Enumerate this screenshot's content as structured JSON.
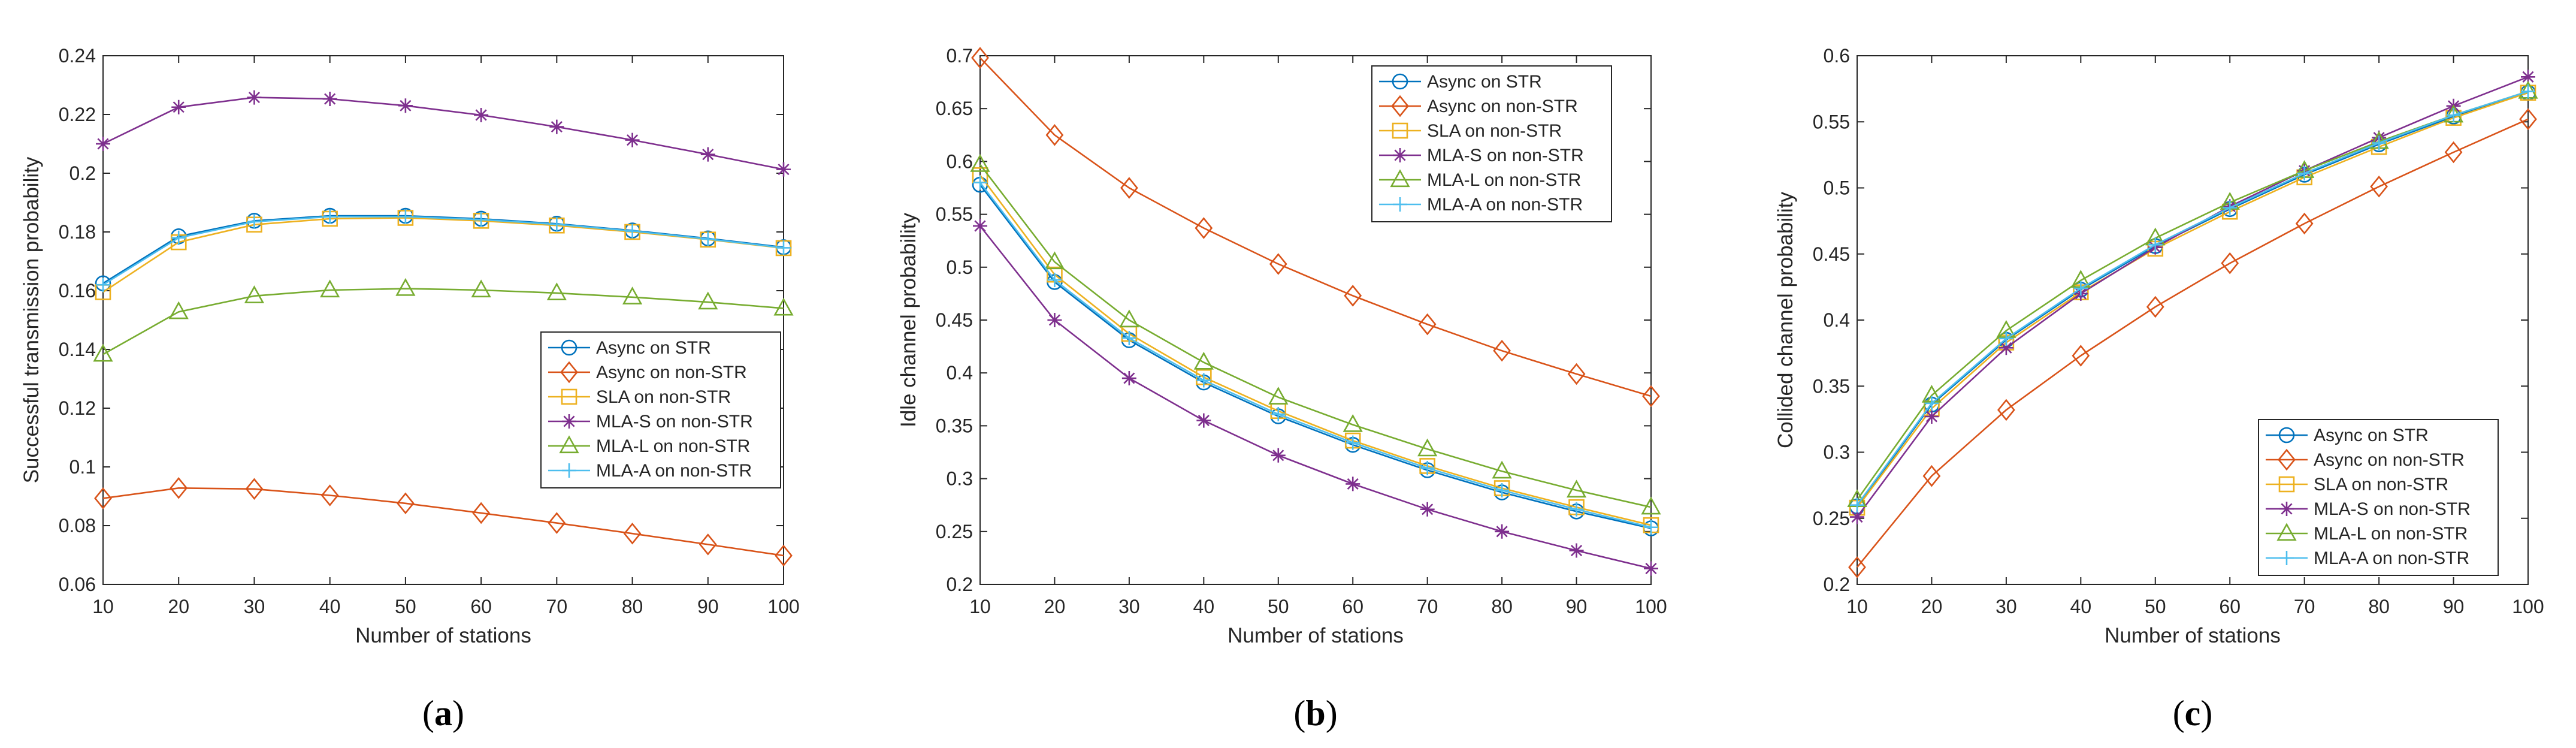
{
  "chart_data": [
    {
      "type": "line",
      "panel_label": "(a)",
      "title": "",
      "xlabel": "Number of stations",
      "ylabel": "Successful transmission probability",
      "xlim": [
        10,
        100
      ],
      "ylim": [
        0.06,
        0.24
      ],
      "xticks": [
        10,
        20,
        30,
        40,
        50,
        60,
        70,
        80,
        90,
        100
      ],
      "yticks": [
        0.06,
        0.08,
        0.1,
        0.12,
        0.14,
        0.16,
        0.18,
        0.2,
        0.22,
        0.24
      ],
      "ytick_labels": [
        "0.06",
        "0.08",
        "0.1",
        "0.12",
        "0.14",
        "0.16",
        "0.18",
        "0.2",
        "0.22",
        "0.24"
      ],
      "legend_position": "center-right",
      "x": [
        10,
        20,
        30,
        40,
        50,
        60,
        70,
        80,
        90,
        100
      ],
      "series": [
        {
          "name": "Async on STR",
          "color": "#0072BD",
          "marker": "circle",
          "values": [
            0.1625,
            0.1785,
            0.1838,
            0.1855,
            0.1855,
            0.1845,
            0.1828,
            0.1805,
            0.1778,
            0.1748
          ]
        },
        {
          "name": "Async on non-STR",
          "color": "#D95319",
          "marker": "diamond",
          "values": [
            0.0893,
            0.0928,
            0.0925,
            0.0903,
            0.0876,
            0.0843,
            0.0809,
            0.0773,
            0.0736,
            0.0698
          ]
        },
        {
          "name": "SLA on non-STR",
          "color": "#EDB120",
          "marker": "square",
          "values": [
            0.1595,
            0.1765,
            0.1825,
            0.1845,
            0.1848,
            0.1838,
            0.1822,
            0.18,
            0.1774,
            0.1745
          ]
        },
        {
          "name": "MLA-S on non-STR",
          "color": "#7E2F8E",
          "marker": "star",
          "values": [
            0.21,
            0.2225,
            0.2258,
            0.2253,
            0.223,
            0.2198,
            0.2158,
            0.2113,
            0.2064,
            0.2013
          ]
        },
        {
          "name": "MLA-L on non-STR",
          "color": "#77AC30",
          "marker": "triangle",
          "values": [
            0.1383,
            0.1528,
            0.1582,
            0.1602,
            0.1607,
            0.1602,
            0.1592,
            0.1578,
            0.1561,
            0.154
          ]
        },
        {
          "name": "MLA-A on non-STR",
          "color": "#4DBEEE",
          "marker": "plus",
          "values": [
            0.162,
            0.178,
            0.1835,
            0.1852,
            0.1852,
            0.1842,
            0.1826,
            0.1803,
            0.1776,
            0.1746
          ]
        }
      ]
    },
    {
      "type": "line",
      "panel_label": "(b)",
      "title": "",
      "xlabel": "Number of stations",
      "ylabel": "Idle channel probability",
      "xlim": [
        10,
        100
      ],
      "ylim": [
        0.2,
        0.7
      ],
      "xticks": [
        10,
        20,
        30,
        40,
        50,
        60,
        70,
        80,
        90,
        100
      ],
      "yticks": [
        0.2,
        0.25,
        0.3,
        0.35,
        0.4,
        0.45,
        0.5,
        0.55,
        0.6,
        0.65,
        0.7
      ],
      "ytick_labels": [
        "0.2",
        "0.25",
        "0.3",
        "0.35",
        "0.4",
        "0.45",
        "0.5",
        "0.55",
        "0.6",
        "0.65",
        "0.7"
      ],
      "legend_position": "top-right",
      "x": [
        10,
        20,
        30,
        40,
        50,
        60,
        70,
        80,
        90,
        100
      ],
      "series": [
        {
          "name": "Async on STR",
          "color": "#0072BD",
          "marker": "circle",
          "values": [
            0.578,
            0.486,
            0.431,
            0.391,
            0.359,
            0.332,
            0.308,
            0.287,
            0.269,
            0.253
          ]
        },
        {
          "name": "Async on non-STR",
          "color": "#D95319",
          "marker": "diamond",
          "values": [
            0.698,
            0.625,
            0.575,
            0.537,
            0.503,
            0.473,
            0.446,
            0.421,
            0.399,
            0.378
          ]
        },
        {
          "name": "SLA on non-STR",
          "color": "#EDB120",
          "marker": "square",
          "values": [
            0.587,
            0.493,
            0.437,
            0.396,
            0.364,
            0.336,
            0.312,
            0.291,
            0.273,
            0.256
          ]
        },
        {
          "name": "MLA-S on non-STR",
          "color": "#7E2F8E",
          "marker": "star",
          "values": [
            0.539,
            0.45,
            0.395,
            0.355,
            0.322,
            0.295,
            0.271,
            0.25,
            0.232,
            0.215
          ]
        },
        {
          "name": "MLA-L on non-STR",
          "color": "#77AC30",
          "marker": "triangle",
          "values": [
            0.597,
            0.505,
            0.45,
            0.41,
            0.377,
            0.351,
            0.328,
            0.307,
            0.289,
            0.273
          ]
        },
        {
          "name": "MLA-A on non-STR",
          "color": "#4DBEEE",
          "marker": "plus",
          "values": [
            0.58,
            0.488,
            0.433,
            0.393,
            0.361,
            0.334,
            0.31,
            0.289,
            0.271,
            0.254
          ]
        }
      ]
    },
    {
      "type": "line",
      "panel_label": "(c)",
      "title": "",
      "xlabel": "Number of stations",
      "ylabel": "Collided channel probability",
      "xlim": [
        10,
        100
      ],
      "ylim": [
        0.2,
        0.6
      ],
      "xticks": [
        10,
        20,
        30,
        40,
        50,
        60,
        70,
        80,
        90,
        100
      ],
      "yticks": [
        0.2,
        0.25,
        0.3,
        0.35,
        0.4,
        0.45,
        0.5,
        0.55,
        0.6
      ],
      "ytick_labels": [
        "0.2",
        "0.25",
        "0.3",
        "0.35",
        "0.4",
        "0.45",
        "0.5",
        "0.55",
        "0.6"
      ],
      "legend_position": "bottom-right",
      "x": [
        10,
        20,
        30,
        40,
        50,
        60,
        70,
        80,
        90,
        100
      ],
      "series": [
        {
          "name": "Async on STR",
          "color": "#0072BD",
          "marker": "circle",
          "values": [
            0.259,
            0.336,
            0.385,
            0.423,
            0.456,
            0.484,
            0.51,
            0.533,
            0.554,
            0.572
          ]
        },
        {
          "name": "Async on non-STR",
          "color": "#D95319",
          "marker": "diamond",
          "values": [
            0.213,
            0.282,
            0.332,
            0.373,
            0.41,
            0.443,
            0.473,
            0.501,
            0.527,
            0.552
          ]
        },
        {
          "name": "SLA on non-STR",
          "color": "#EDB120",
          "marker": "square",
          "values": [
            0.258,
            0.333,
            0.383,
            0.421,
            0.454,
            0.482,
            0.508,
            0.531,
            0.553,
            0.572
          ]
        },
        {
          "name": "MLA-S on non-STR",
          "color": "#7E2F8E",
          "marker": "star",
          "values": [
            0.251,
            0.327,
            0.379,
            0.42,
            0.455,
            0.486,
            0.513,
            0.538,
            0.562,
            0.584
          ]
        },
        {
          "name": "MLA-L on non-STR",
          "color": "#77AC30",
          "marker": "triangle",
          "values": [
            0.264,
            0.343,
            0.392,
            0.43,
            0.462,
            0.489,
            0.513,
            0.535,
            0.555,
            0.573
          ]
        },
        {
          "name": "MLA-A on non-STR",
          "color": "#4DBEEE",
          "marker": "plus",
          "values": [
            0.26,
            0.337,
            0.386,
            0.424,
            0.457,
            0.485,
            0.511,
            0.534,
            0.555,
            0.573
          ]
        }
      ]
    }
  ]
}
